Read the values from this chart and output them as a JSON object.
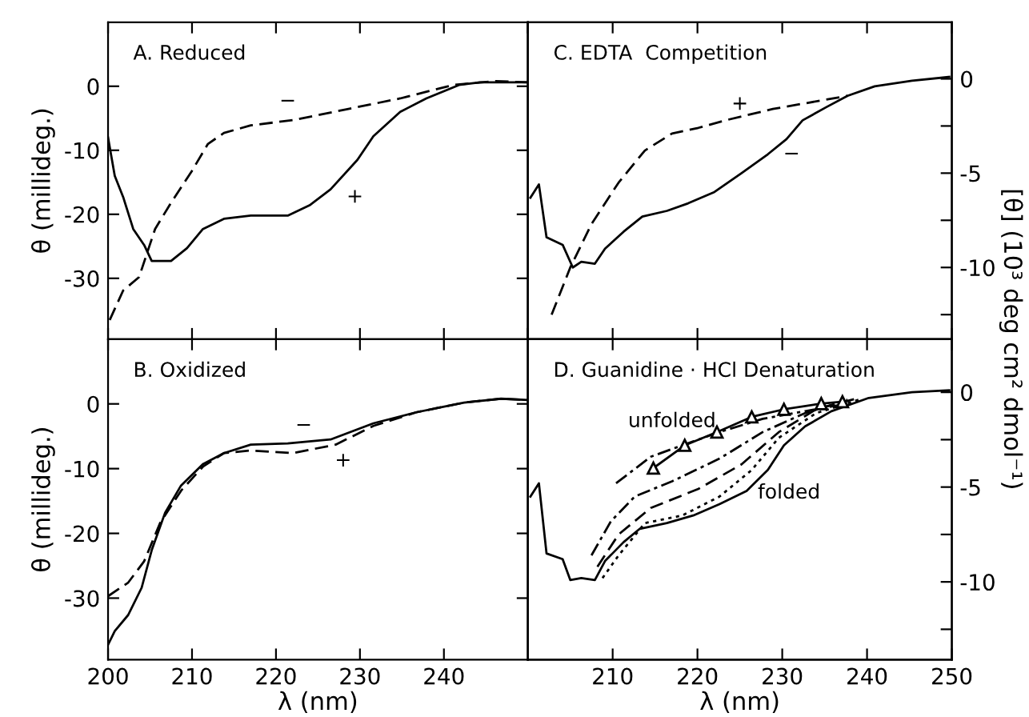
{
  "chart_data": [
    {
      "type": "line",
      "title": "A. Reduced",
      "ylabel": "θ (millideg.)",
      "xlim": [
        200,
        250
      ],
      "xticks": [
        200,
        210,
        220,
        230,
        240,
        250
      ],
      "ylim": [
        -39.5,
        10
      ],
      "yticks": [
        0,
        -10,
        -20,
        -30
      ],
      "tick_labels": "y",
      "series": [
        {
          "color": "#000000",
          "line_style": "solid",
          "x": [
            200.0,
            200.8,
            201.8,
            203,
            204.3,
            205.2,
            207.5,
            209.4,
            211.3,
            213.8,
            217,
            221.4,
            224,
            226.5,
            229.7,
            231.6,
            234.8,
            237.9,
            241.8,
            244.3,
            250
          ],
          "values": [
            -8,
            -14,
            -17.3,
            -22.3,
            -24.8,
            -27.3,
            -27.3,
            -25.3,
            -22.3,
            -20.7,
            -20.2,
            -20.2,
            -18.6,
            -16.1,
            -11.5,
            -7.8,
            -4,
            -1.9,
            0.2,
            0.6,
            0.6
          ]
        },
        {
          "color": "#000000",
          "line_style": "dashed",
          "x": [
            200.2,
            201.8,
            203.7,
            205.6,
            207.5,
            210,
            211.9,
            213.8,
            217,
            222,
            228.4,
            234.8,
            241.1,
            246.2,
            250
          ],
          "values": [
            -36.5,
            -31.9,
            -29.8,
            -22.3,
            -18.2,
            -13.2,
            -9,
            -7.3,
            -6.1,
            -5.3,
            -3.6,
            -1.9,
            0.2,
            0.8,
            0.6
          ]
        }
      ],
      "annotations": [
        "−",
        "+"
      ]
    },
    {
      "type": "line",
      "title": "C. EDTA  Competition",
      "y2label": "[θ] (10³ deg cm² dmol⁻¹)",
      "xlim": [
        200,
        250
      ],
      "xticks": [
        200,
        210,
        220,
        230,
        240,
        250
      ],
      "y2lim": [
        -13.8,
        3
      ],
      "y2ticks": [
        0,
        {
          "value": -2.5,
          "label": null
        },
        -5,
        {
          "value": -7.5,
          "label": null
        },
        -10,
        {
          "value": -12.5,
          "label": null
        }
      ],
      "tick_labels": "y",
      "series": [
        {
          "color": "#000000",
          "line_style": "solid",
          "axis": "y2",
          "x": [
            200.3,
            201.3,
            202.2,
            204.1,
            205.3,
            206.3,
            207.9,
            209.1,
            211.3,
            213.5,
            216.4,
            218.9,
            222,
            225.2,
            228.3,
            230.5,
            232.4,
            235.2,
            237.7,
            240.9,
            245.3,
            249.7
          ],
          "values": [
            -6.3,
            -5.6,
            -8.4,
            -8.8,
            -10,
            -9.7,
            -9.8,
            -9,
            -8.1,
            -7.3,
            -7,
            -6.6,
            -6,
            -5,
            -4,
            -3.2,
            -2.2,
            -1.5,
            -0.9,
            -0.4,
            -0.1,
            0.1
          ]
        },
        {
          "color": "#000000",
          "line_style": "dashed",
          "axis": "y2",
          "x": [
            202.8,
            205,
            207.5,
            210.7,
            213.8,
            217,
            220.1,
            223.3,
            228.9,
            235.2,
            237.7
          ],
          "values": [
            -12.5,
            -10,
            -7.7,
            -5.5,
            -3.8,
            -2.9,
            -2.6,
            -2.2,
            -1.6,
            -1.1,
            -0.9
          ]
        }
      ],
      "annotations": [
        "+",
        "−"
      ]
    },
    {
      "type": "line",
      "title": "B. Oxidized",
      "ylabel": "θ (millideg.)",
      "xlabel": "λ (nm)",
      "xlim": [
        200,
        250
      ],
      "xticks": [
        200,
        210,
        220,
        230,
        240
      ],
      "ylim": [
        -39.5,
        10
      ],
      "yticks": [
        0,
        -10,
        -20,
        -30
      ],
      "series": [
        {
          "color": "#000000",
          "line_style": "solid",
          "x": [
            200,
            200.8,
            202.4,
            204,
            205.2,
            206.8,
            208.7,
            211.3,
            213.8,
            217,
            221.4,
            226.5,
            231.6,
            236.7,
            242.4,
            246.8,
            250
          ],
          "values": [
            -37.2,
            -35.1,
            -32.6,
            -28.4,
            -22.6,
            -16.8,
            -12.6,
            -9.3,
            -7.6,
            -6.3,
            -6.1,
            -5.5,
            -3,
            -1.3,
            0.2,
            0.8,
            0.6
          ]
        },
        {
          "color": "#000000",
          "line_style": "dashed",
          "x": [
            200,
            202.4,
            204.3,
            206.2,
            208.7,
            211.3,
            213.8,
            217,
            222,
            227.1,
            231.6,
            236.7,
            242.4,
            246.8,
            250
          ],
          "values": [
            -29.7,
            -27.6,
            -24.3,
            -18.4,
            -13.4,
            -9.7,
            -7.6,
            -7.2,
            -7.6,
            -6.3,
            -3.4,
            -1.3,
            0.2,
            0.8,
            0.6
          ]
        }
      ],
      "annotations": [
        "−",
        "+"
      ]
    },
    {
      "type": "line",
      "title": "D. Guanidine · HCl Denaturation",
      "xlabel": "λ (nm)",
      "xlim": [
        200,
        250
      ],
      "xticks": [
        210,
        220,
        230,
        240,
        250
      ],
      "y2lim": [
        -14.1,
        2.8
      ],
      "y2ticks": [
        0,
        {
          "value": -2.5,
          "label": null
        },
        -5,
        {
          "value": -7.5,
          "label": null
        },
        -10,
        {
          "value": -12.5,
          "label": null
        }
      ],
      "series": [
        {
          "color": "#000000",
          "line_style": "solid",
          "axis": "y2",
          "x": [
            200.3,
            201.3,
            202.2,
            204.1,
            205,
            206.3,
            207.9,
            209.1,
            211.3,
            213.2,
            216.4,
            219.5,
            222.6,
            225.8,
            228.3,
            230.2,
            232.7,
            235.8,
            240.2,
            245.3,
            249.7
          ],
          "values": [
            -5.5,
            -4.8,
            -8.5,
            -8.8,
            -9.9,
            -9.8,
            -9.9,
            -8.9,
            -7.9,
            -7.2,
            -6.9,
            -6.5,
            -5.9,
            -5.2,
            -4.1,
            -2.8,
            -1.8,
            -1,
            -0.3,
            0,
            0.1
          ]
        },
        {
          "color": "#000000",
          "line_style": "dotted",
          "axis": "y2",
          "x": [
            208.8,
            210.7,
            213.8,
            218.2,
            222.6,
            226.4,
            229.6,
            234,
            239
          ],
          "values": [
            -9.8,
            -8.6,
            -6.9,
            -6.5,
            -5.5,
            -4.1,
            -2.4,
            -1.1,
            -0.4
          ]
        },
        {
          "color": "#000000",
          "line_style": "dashed",
          "axis": "y2",
          "x": [
            208.2,
            210.7,
            214.5,
            220.1,
            225.2,
            229.6,
            234,
            239
          ],
          "values": [
            -9.2,
            -7.5,
            -6.1,
            -5.1,
            -3.8,
            -2.1,
            -0.9,
            -0.3
          ]
        },
        {
          "color": "#000000",
          "line_style": "dashdot",
          "axis": "y2",
          "x": [
            207.5,
            209.8,
            212.6,
            217,
            222.6,
            227.7,
            232.7,
            237.7
          ],
          "values": [
            -8.6,
            -6.8,
            -5.5,
            -4.7,
            -3.5,
            -2.1,
            -1.1,
            -0.4
          ]
        },
        {
          "color": "#000000",
          "line_style": "dashdot",
          "axis": "y2",
          "x": [
            210.4,
            214.5,
            218.2,
            222.6,
            227.7,
            232.7,
            237.7
          ],
          "values": [
            -4.8,
            -3.4,
            -2.8,
            -2.1,
            -1.4,
            -1,
            -0.6
          ]
        },
        {
          "color": "#000000",
          "line_style": "solid",
          "marker": "triangle",
          "axis": "y2",
          "x": [
            214.8,
            218.5,
            222.3,
            226.4,
            230.2,
            234.6,
            237.1
          ],
          "values": [
            -4,
            -2.8,
            -2.1,
            -1.3,
            -0.9,
            -0.6,
            -0.5
          ]
        }
      ],
      "annotations": [
        "unfolded",
        "folded"
      ]
    }
  ]
}
